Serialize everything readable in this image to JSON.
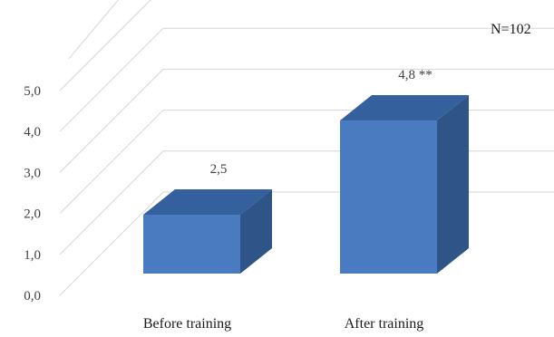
{
  "chart_data": {
    "type": "bar",
    "categories": [
      "Before training",
      "After training"
    ],
    "values": [
      2.5,
      4.8
    ],
    "data_labels": [
      "2,5",
      "4,8 **"
    ],
    "ylim": [
      0,
      5
    ],
    "y_ticks": [
      "0,0",
      "1,0",
      "2,0",
      "3,0",
      "4,0",
      "5,0"
    ],
    "annotation": "N=102",
    "title": "",
    "xlabel": "",
    "ylabel": "",
    "grid": true,
    "style": "3d-column",
    "colors": {
      "front": "#4a7bc0",
      "top": "#34609e",
      "side": "#2e5488",
      "grid": "#d6d6d6"
    }
  }
}
